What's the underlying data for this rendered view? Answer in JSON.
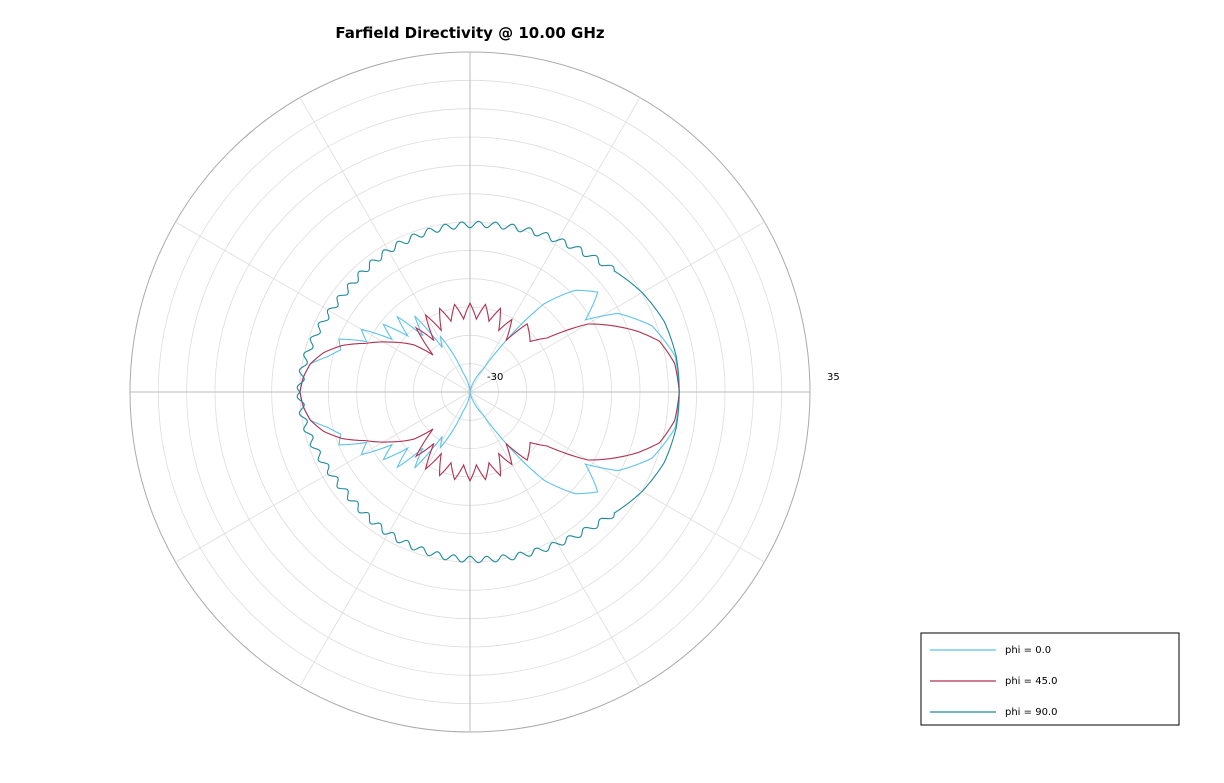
{
  "chart_data": {
    "type": "polar-line",
    "title": "Farfield Directivity @ 10.00 GHz",
    "r_range": [
      -30,
      35
    ],
    "r_tick_labels": [
      "-30",
      "35"
    ],
    "num_rings": 12,
    "angular_spokes_deg": 30,
    "grid": true,
    "legend_position": "bottom-right",
    "series": [
      {
        "name": "phi = 0.0",
        "color": "#5ec3e8",
        "description_points_deg_db": [
          [
            0,
            10
          ],
          [
            10,
            9.8
          ],
          [
            20,
            7
          ],
          [
            28,
            2
          ],
          [
            32,
            -4
          ],
          [
            38,
            1
          ],
          [
            44,
            -2
          ],
          [
            50,
            -8
          ],
          [
            56,
            -20
          ],
          [
            60,
            -25
          ],
          [
            70,
            -28
          ],
          [
            80,
            -30
          ],
          [
            90,
            -30
          ],
          [
            100,
            -29
          ],
          [
            110,
            -26
          ],
          [
            118,
            -18
          ],
          [
            122,
            -20
          ],
          [
            126,
            -12
          ],
          [
            130,
            -16
          ],
          [
            134,
            -10
          ],
          [
            138,
            -14
          ],
          [
            142,
            -9
          ],
          [
            146,
            -12
          ],
          [
            150,
            -6
          ],
          [
            154,
            -8
          ],
          [
            158,
            -3
          ],
          [
            162,
            -4
          ],
          [
            166,
            -2
          ],
          [
            170,
            1
          ],
          [
            175,
            2
          ],
          [
            180,
            2.5
          ]
        ]
      },
      {
        "name": "phi = 45.0",
        "color": "#b03050",
        "description_points_deg_db": [
          [
            0,
            10
          ],
          [
            8,
            9.5
          ],
          [
            15,
            7.5
          ],
          [
            20,
            4
          ],
          [
            25,
            0
          ],
          [
            30,
            -4
          ],
          [
            35,
            -12
          ],
          [
            40,
            -15
          ],
          [
            45,
            -14
          ],
          [
            50,
            -13
          ],
          [
            55,
            -18
          ],
          [
            60,
            -14
          ],
          [
            65,
            -17
          ],
          [
            70,
            -13
          ],
          [
            75,
            -16
          ],
          [
            80,
            -13
          ],
          [
            85,
            -16
          ],
          [
            90,
            -13
          ],
          [
            95,
            -16
          ],
          [
            100,
            -13
          ],
          [
            105,
            -16
          ],
          [
            110,
            -13
          ],
          [
            115,
            -17
          ],
          [
            120,
            -13
          ],
          [
            125,
            -18
          ],
          [
            130,
            -14
          ],
          [
            135,
            -20
          ],
          [
            140,
            -16
          ],
          [
            148,
            -12
          ],
          [
            155,
            -8
          ],
          [
            160,
            -4
          ],
          [
            165,
            -1
          ],
          [
            170,
            1
          ],
          [
            175,
            2
          ],
          [
            180,
            2.5
          ]
        ]
      },
      {
        "name": "phi = 90.0",
        "color": "#1f8a9a",
        "description_points_deg_db": [
          [
            0,
            10
          ],
          [
            10,
            10
          ],
          [
            20,
            9.5
          ],
          [
            30,
            8
          ],
          [
            40,
            6
          ],
          [
            50,
            4.5
          ],
          [
            60,
            3.5
          ],
          [
            70,
            2.8
          ],
          [
            80,
            2.3
          ],
          [
            90,
            2
          ],
          [
            100,
            1.8
          ],
          [
            110,
            1.5
          ],
          [
            120,
            1.2
          ],
          [
            130,
            0.8
          ],
          [
            140,
            0.5
          ],
          [
            150,
            0.8
          ],
          [
            160,
            1.5
          ],
          [
            170,
            2.2
          ],
          [
            180,
            2.5
          ]
        ]
      }
    ]
  },
  "legend": {
    "items": [
      {
        "label": "phi = 0.0",
        "color": "#5ec3e8"
      },
      {
        "label": "phi = 45.0",
        "color": "#b03050"
      },
      {
        "label": "phi = 90.0",
        "color": "#1f8a9a"
      }
    ]
  }
}
